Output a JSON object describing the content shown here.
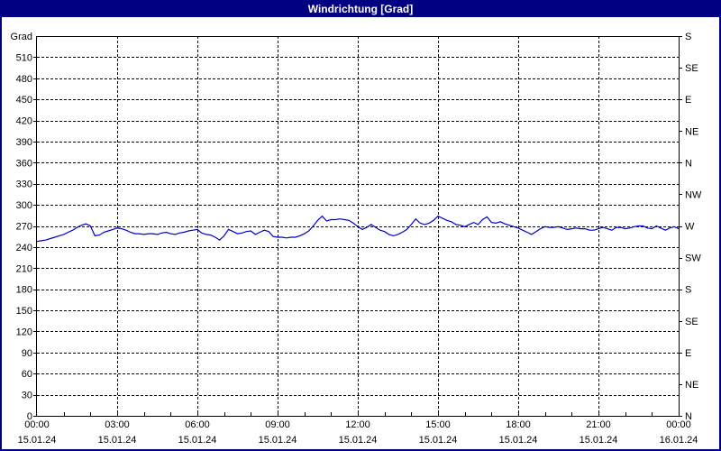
{
  "window": {
    "title": "Windrichtung [Grad]"
  },
  "colors": {
    "titlebar_bg": "#000080",
    "titlebar_text": "#ffffff",
    "frame_border": "#000080",
    "background": "#ffffff",
    "line": "#0000cc",
    "grid": "#000000",
    "axis": "#000000",
    "text": "#000000"
  },
  "chart_data": {
    "type": "line",
    "title": "Windrichtung [Grad]",
    "ylabel": "Grad",
    "unit": "Grad",
    "ylim": [
      0,
      540
    ],
    "grid": "dashed",
    "y_ticks": [
      0,
      30,
      60,
      90,
      120,
      150,
      180,
      210,
      240,
      270,
      300,
      330,
      360,
      390,
      420,
      450,
      480,
      510
    ],
    "right_axis_labels": [
      {
        "deg": 540,
        "label": "S"
      },
      {
        "deg": 495,
        "label": "SE"
      },
      {
        "deg": 450,
        "label": "E"
      },
      {
        "deg": 405,
        "label": "NE"
      },
      {
        "deg": 360,
        "label": "N"
      },
      {
        "deg": 315,
        "label": "NW"
      },
      {
        "deg": 270,
        "label": "W"
      },
      {
        "deg": 225,
        "label": "SW"
      },
      {
        "deg": 180,
        "label": "S"
      },
      {
        "deg": 135,
        "label": "SE"
      },
      {
        "deg": 90,
        "label": "E"
      },
      {
        "deg": 45,
        "label": "NE"
      },
      {
        "deg": 0,
        "label": "N"
      }
    ],
    "x_ticks": [
      {
        "hour": 0,
        "time": "00:00",
        "date": "15.01.24"
      },
      {
        "hour": 3,
        "time": "03:00",
        "date": "15.01.24"
      },
      {
        "hour": 6,
        "time": "06:00",
        "date": "15.01.24"
      },
      {
        "hour": 9,
        "time": "09:00",
        "date": "15.01.24"
      },
      {
        "hour": 12,
        "time": "12:00",
        "date": "15.01.24"
      },
      {
        "hour": 15,
        "time": "15:00",
        "date": "15.01.24"
      },
      {
        "hour": 18,
        "time": "18:00",
        "date": "15.01.24"
      },
      {
        "hour": 21,
        "time": "21:00",
        "date": "15.01.24"
      },
      {
        "hour": 24,
        "time": "00:00",
        "date": "16.01.24"
      }
    ],
    "x_minor_tick_hours": 1,
    "series": [
      {
        "name": "Windrichtung",
        "unit": "Grad",
        "start": "15.01.24 00:00",
        "end": "16.01.24 00:00",
        "interval_minutes": 10,
        "values": [
          248,
          249,
          250,
          252,
          254,
          256,
          258,
          261,
          264,
          268,
          271,
          273,
          270,
          256,
          257,
          261,
          263,
          265,
          267,
          266,
          264,
          261,
          259,
          259,
          258,
          259,
          259,
          258,
          260,
          261,
          259,
          258,
          260,
          261,
          263,
          264,
          265,
          260,
          258,
          257,
          254,
          250,
          256,
          265,
          262,
          259,
          260,
          262,
          263,
          258,
          261,
          264,
          262,
          255,
          254,
          254,
          253,
          254,
          254,
          256,
          259,
          263,
          270,
          278,
          284,
          277,
          279,
          279,
          280,
          279,
          278,
          274,
          269,
          265,
          268,
          272,
          268,
          264,
          262,
          258,
          256,
          258,
          261,
          265,
          272,
          280,
          274,
          272,
          274,
          278,
          284,
          281,
          278,
          276,
          272,
          271,
          269,
          272,
          275,
          272,
          279,
          283,
          275,
          274,
          276,
          273,
          271,
          269,
          267,
          264,
          261,
          258,
          262,
          266,
          269,
          268,
          268,
          269,
          267,
          265,
          266,
          267,
          266,
          266,
          264,
          264,
          266,
          268,
          266,
          264,
          268,
          268,
          266,
          267,
          269,
          270,
          270,
          267,
          266,
          270,
          267,
          264,
          267,
          269,
          266
        ]
      }
    ]
  }
}
